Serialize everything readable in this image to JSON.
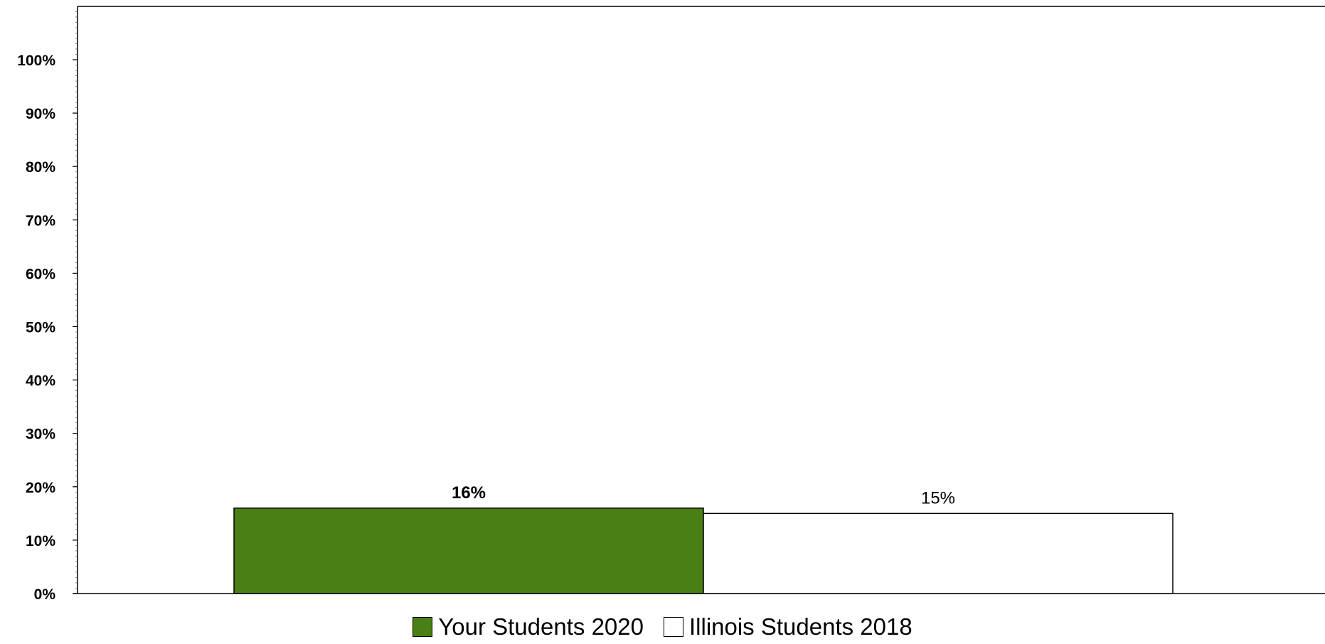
{
  "chart_data": {
    "type": "bar",
    "categories": [
      ""
    ],
    "series": [
      {
        "name": "Your Students 2020",
        "values": [
          16
        ],
        "color": "#4a7f16",
        "label": "16%",
        "label_bold": true
      },
      {
        "name": "Illinois Students 2018",
        "values": [
          15
        ],
        "color": "#ffffff",
        "label": "15%",
        "label_bold": false
      }
    ],
    "title": "",
    "xlabel": "",
    "ylabel": "",
    "ylim": [
      0,
      100
    ],
    "yticks": [
      0,
      10,
      20,
      30,
      40,
      50,
      60,
      70,
      80,
      90,
      100
    ],
    "ytick_labels": [
      "0%",
      "10%",
      "20%",
      "30%",
      "40%",
      "50%",
      "60%",
      "70%",
      "80%",
      "90%",
      "100%"
    ],
    "grid": false,
    "legend_position": "bottom-center"
  }
}
